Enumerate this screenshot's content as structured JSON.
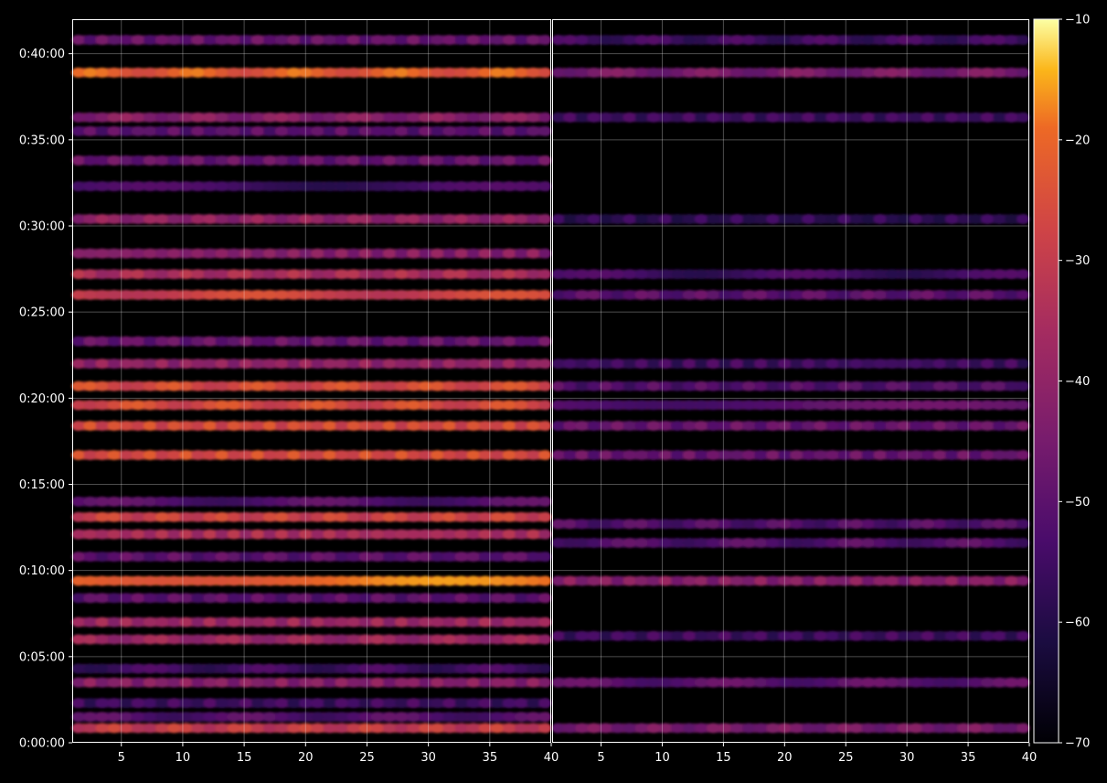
{
  "chart_data": {
    "type": "heatmap",
    "title": "",
    "xlabel": "",
    "ylabel": "",
    "background": "#000000",
    "colormap": "inferno",
    "grid": true,
    "panels": [
      {
        "name": "",
        "xlim": [
          1,
          40
        ],
        "xticks": [
          "5",
          "10",
          "15",
          "20",
          "25",
          "30",
          "35",
          "40"
        ],
        "ylim": [
          "0:00:00",
          "0:42:00"
        ],
        "yticks": [
          "0:00:00",
          "0:05:00",
          "0:10:00",
          "0:15:00",
          "0:20:00",
          "0:25:00",
          "0:30:00",
          "0:35:00",
          "0:40:00"
        ],
        "bands": [
          {
            "minute": 0.85,
            "value": -30
          },
          {
            "minute": 1.5,
            "value": -52
          },
          {
            "minute": 2.3,
            "value": -55
          },
          {
            "minute": 3.5,
            "value": -42
          },
          {
            "minute": 4.3,
            "value": -55
          },
          {
            "minute": 6.0,
            "value": -38
          },
          {
            "minute": 7.0,
            "value": -38
          },
          {
            "minute": 8.4,
            "value": -50
          },
          {
            "minute": 9.4,
            "value": -20
          },
          {
            "minute": 10.8,
            "value": -50
          },
          {
            "minute": 12.1,
            "value": -35
          },
          {
            "minute": 13.1,
            "value": -28
          },
          {
            "minute": 14.0,
            "value": -52
          },
          {
            "minute": 16.7,
            "value": -26
          },
          {
            "minute": 18.4,
            "value": -26
          },
          {
            "minute": 19.6,
            "value": -26
          },
          {
            "minute": 20.7,
            "value": -26
          },
          {
            "minute": 22.0,
            "value": -40
          },
          {
            "minute": 23.3,
            "value": -48
          },
          {
            "minute": 26.0,
            "value": -28
          },
          {
            "minute": 27.2,
            "value": -35
          },
          {
            "minute": 28.4,
            "value": -42
          },
          {
            "minute": 30.4,
            "value": -40
          },
          {
            "minute": 32.3,
            "value": -55
          },
          {
            "minute": 33.8,
            "value": -48
          },
          {
            "minute": 35.5,
            "value": -50
          },
          {
            "minute": 36.3,
            "value": -42
          },
          {
            "minute": 38.9,
            "value": -22
          },
          {
            "minute": 40.8,
            "value": -48
          }
        ]
      },
      {
        "name": "",
        "xlim": [
          1,
          40
        ],
        "xticks": [
          "5",
          "10",
          "15",
          "20",
          "25",
          "30",
          "35",
          "40"
        ],
        "ylim": [
          "0:00:00",
          "0:42:00"
        ],
        "yticks": [
          "0:00:00",
          "0:05:00",
          "0:10:00",
          "0:15:00",
          "0:20:00",
          "0:25:00",
          "0:30:00",
          "0:35:00",
          "0:40:00"
        ],
        "bands": [
          {
            "minute": 0.85,
            "value": -45
          },
          {
            "minute": 3.5,
            "value": -50
          },
          {
            "minute": 6.2,
            "value": -55
          },
          {
            "minute": 9.4,
            "value": -42
          },
          {
            "minute": 11.6,
            "value": -52
          },
          {
            "minute": 12.7,
            "value": -52
          },
          {
            "minute": 16.7,
            "value": -48
          },
          {
            "minute": 18.4,
            "value": -48
          },
          {
            "minute": 19.6,
            "value": -50
          },
          {
            "minute": 20.7,
            "value": -52
          },
          {
            "minute": 22.0,
            "value": -55
          },
          {
            "minute": 26.0,
            "value": -50
          },
          {
            "minute": 27.2,
            "value": -55
          },
          {
            "minute": 30.4,
            "value": -58
          },
          {
            "minute": 36.3,
            "value": -55
          },
          {
            "minute": 38.9,
            "value": -45
          },
          {
            "minute": 40.8,
            "value": -55
          }
        ]
      }
    ],
    "colorbar": {
      "min": -70,
      "max": -10,
      "ticks": [
        "−10",
        "−20",
        "−30",
        "−40",
        "−50",
        "−60",
        "−70"
      ]
    }
  }
}
